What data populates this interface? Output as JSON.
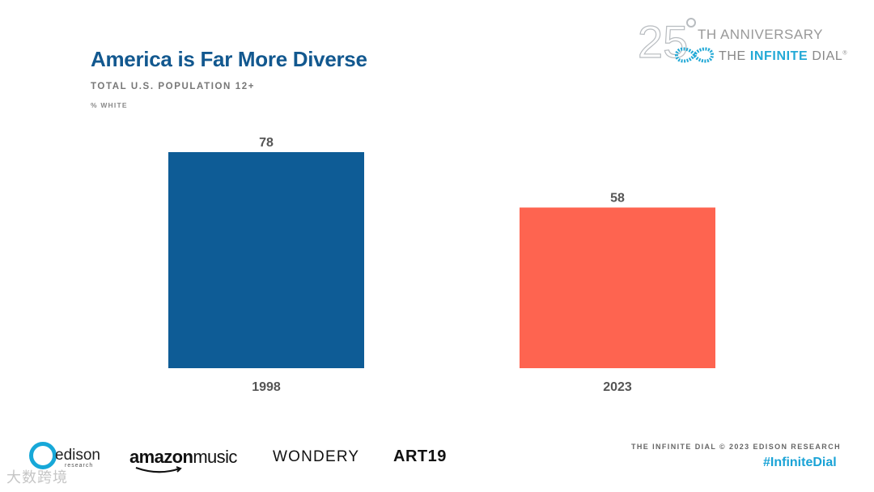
{
  "header": {
    "title": "America is Far More Diverse",
    "subtitle": "TOTAL U.S. POPULATION 12+",
    "measure": "% WHITE"
  },
  "badge": {
    "number": "25",
    "anniversary": "TH ANNIVERSARY",
    "dial_prefix": "THE",
    "dial_highlight": "INFINITE",
    "dial_suffix": "DIAL",
    "trademark": "®",
    "icon": "infinity-icon"
  },
  "chart_data": {
    "type": "bar",
    "title": "America is Far More Diverse",
    "subtitle": "TOTAL U.S. POPULATION 12+",
    "ylabel": "% WHITE",
    "xlabel": "",
    "categories": [
      "1998",
      "2023"
    ],
    "values": [
      78,
      58
    ],
    "colors": [
      "#0e5c96",
      "#fe6450"
    ],
    "ylim": [
      0,
      80
    ],
    "grid": false,
    "legend": "none"
  },
  "footer": {
    "logos": {
      "edison": "edison",
      "edison_sub": "research",
      "amazon_bold": "amazon",
      "amazon_light": "music",
      "wondery": "WONDERY",
      "art19": "ART19"
    },
    "credit": "THE INFINITE DIAL   © 2023 EDISON RESEARCH",
    "hashtag": "#InfiniteDial",
    "watermark": "大数跨境"
  }
}
